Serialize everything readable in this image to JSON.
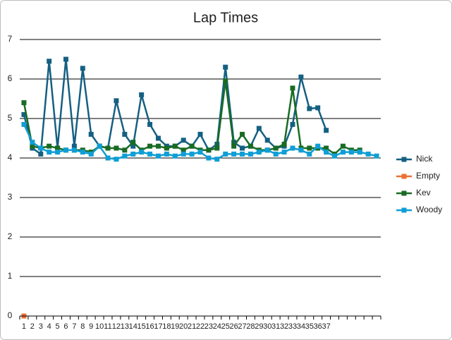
{
  "chart_data": {
    "type": "line",
    "title": "Lap Times",
    "categories": [
      "1",
      "2",
      "3",
      "4",
      "5",
      "6",
      "7",
      "8",
      "9",
      "10",
      "11",
      "12",
      "13",
      "14",
      "15",
      "16",
      "17",
      "18",
      "19",
      "20",
      "21",
      "22",
      "23",
      "24",
      "25",
      "26",
      "27",
      "28",
      "29",
      "30",
      "31",
      "32",
      "33",
      "34",
      "35",
      "36",
      "37",
      null,
      null,
      null,
      null,
      null,
      null
    ],
    "series": [
      {
        "name": "Nick",
        "color": "#156082",
        "values": [
          5.1,
          4.25,
          4.1,
          6.45,
          4.25,
          6.5,
          4.3,
          6.27,
          4.6,
          4.3,
          4.25,
          5.45,
          4.6,
          4.3,
          5.6,
          4.85,
          4.5,
          4.3,
          4.3,
          4.45,
          4.3,
          4.6,
          4.2,
          4.35,
          6.3,
          4.4,
          4.25,
          4.3,
          4.75,
          4.45,
          4.25,
          4.3,
          4.85,
          6.05,
          5.25,
          5.27,
          4.7,
          null,
          null,
          null,
          null,
          null,
          null
        ]
      },
      {
        "name": "Empty",
        "color": "#e97132",
        "values": [
          0,
          null,
          null,
          null,
          null,
          null,
          null,
          null,
          null,
          null,
          null,
          null,
          null,
          null,
          null,
          null,
          null,
          null,
          null,
          null,
          null,
          null,
          null,
          null,
          null,
          null,
          null,
          null,
          null,
          null,
          null,
          null,
          null,
          null,
          null,
          null,
          null,
          null,
          null,
          null,
          null,
          null,
          null
        ]
      },
      {
        "name": "Kev",
        "color": "#196b24",
        "values": [
          5.4,
          4.3,
          4.25,
          4.3,
          4.25,
          4.2,
          4.2,
          4.2,
          4.15,
          4.3,
          4.25,
          4.25,
          4.2,
          4.4,
          4.2,
          4.3,
          4.3,
          4.25,
          4.3,
          4.2,
          4.3,
          4.2,
          4.2,
          4.25,
          5.95,
          4.3,
          4.6,
          4.3,
          4.2,
          4.2,
          4.25,
          4.35,
          5.77,
          4.25,
          4.25,
          4.25,
          4.25,
          4.1,
          4.3,
          4.2,
          4.2,
          null,
          null
        ]
      },
      {
        "name": "Woody",
        "color": "#0f9ed5",
        "values": [
          4.85,
          4.4,
          4.25,
          4.15,
          4.15,
          4.2,
          4.2,
          4.15,
          4.1,
          4.3,
          4.0,
          3.97,
          4.05,
          4.1,
          4.15,
          4.1,
          4.05,
          4.1,
          4.05,
          4.1,
          4.1,
          4.15,
          4.0,
          3.97,
          4.1,
          4.1,
          4.1,
          4.1,
          4.15,
          4.2,
          4.1,
          4.15,
          4.25,
          4.2,
          4.1,
          4.3,
          4.15,
          4.05,
          4.15,
          4.15,
          4.15,
          4.1,
          4.05
        ]
      }
    ],
    "ylim": [
      0,
      7
    ],
    "yticks": [
      0,
      1,
      2,
      3,
      4,
      5,
      6,
      7
    ],
    "grid": true,
    "legend": "right"
  }
}
